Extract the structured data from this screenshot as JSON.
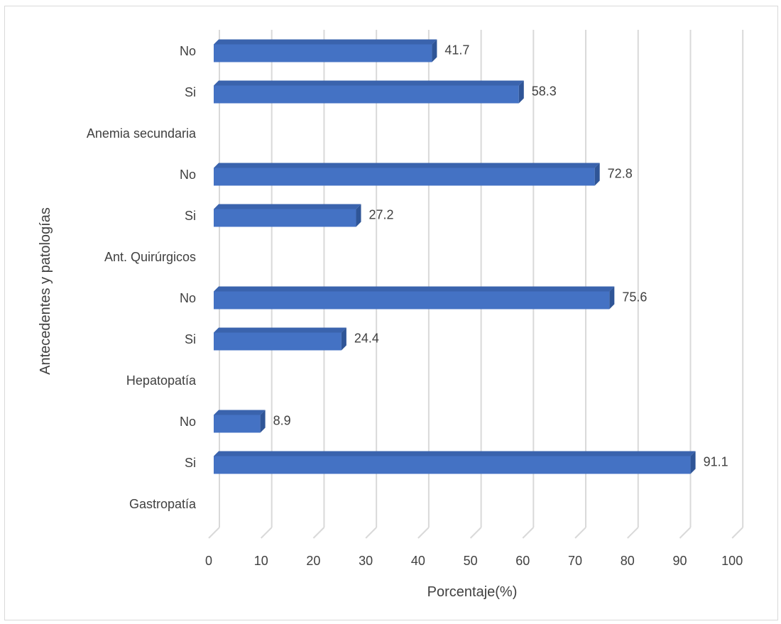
{
  "chart_data": {
    "type": "bar",
    "orientation": "horizontal",
    "style": "3d",
    "xlabel": "Porcentaje(%)",
    "ylabel": "Antecedentes y patologías",
    "xlim": [
      0,
      100
    ],
    "x_ticks": [
      "0",
      "10",
      "20",
      "30",
      "40",
      "50",
      "60",
      "70",
      "80",
      "90",
      "100"
    ],
    "grid": "vertical",
    "bar_color": "#4472c4",
    "categories": [
      "No",
      "Si",
      "Anemia secundaria",
      "No",
      "Si",
      "Ant. Quirúrgicos",
      "No",
      "Si",
      "Hepatopatía",
      "No",
      "Si",
      "Gastropatía"
    ],
    "values": [
      41.7,
      58.3,
      null,
      72.8,
      27.2,
      null,
      75.6,
      24.4,
      null,
      8.9,
      91.1,
      null
    ],
    "data_labels": [
      "41.7",
      "58.3",
      "",
      "72.8",
      "27.2",
      "",
      "75.6",
      "24.4",
      "",
      "8.9",
      "91.1",
      ""
    ]
  }
}
